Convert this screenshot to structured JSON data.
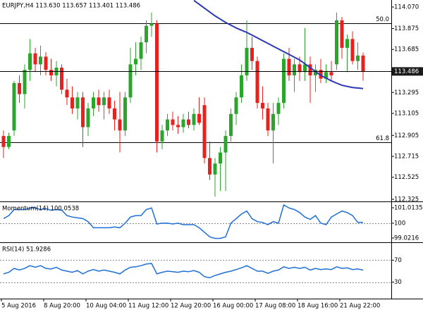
{
  "chart_data": [
    {
      "type": "candlestick",
      "title": "EURJPY,H4  113.630 113.657 113.401 113.486",
      "categories": [
        "5 Aug 2016",
        null,
        null,
        null,
        null,
        null,
        null,
        null,
        "8 Aug 20:00",
        null,
        null,
        null,
        null,
        null,
        null,
        null,
        "10 Aug 04:00",
        null,
        null,
        null,
        null,
        null,
        null,
        null,
        "11 Aug 12:00",
        null,
        null,
        null,
        null,
        null,
        null,
        null,
        "12 Aug 20:00",
        null,
        null,
        null,
        null,
        null,
        null,
        null,
        "16 Aug 00:00",
        null,
        null,
        null,
        null,
        null,
        null,
        null,
        "17 Aug 08:00",
        null,
        null,
        null,
        null,
        null,
        null,
        null,
        "18 Aug 16:00",
        null,
        null,
        null,
        null,
        null,
        null,
        null,
        "21 Aug 22:00",
        null,
        null,
        null,
        null
      ],
      "open": [
        112.9,
        112.8,
        112.95,
        113.38,
        113.28,
        113.5,
        113.65,
        113.55,
        113.62,
        113.5,
        113.45,
        113.52,
        113.32,
        113.25,
        113.15,
        113.25,
        112.98,
        113.15,
        113.25,
        113.18,
        113.25,
        113.15,
        113.05,
        112.95,
        113.25,
        113.55,
        113.6,
        113.75,
        113.9,
        113.92,
        112.85,
        112.95,
        113.05,
        113.0,
        112.98,
        113.05,
        113.0,
        113.1,
        113.18,
        112.7,
        112.55,
        112.65,
        112.75,
        112.9,
        113.1,
        113.25,
        113.45,
        113.7,
        113.58,
        113.2,
        113.15,
        112.95,
        113.1,
        113.2,
        113.6,
        113.45,
        113.55,
        113.48,
        113.55,
        113.45,
        113.5,
        113.42,
        113.48,
        113.55,
        113.95,
        113.7,
        113.78,
        113.58,
        113.63
      ],
      "high": [
        112.95,
        112.93,
        113.4,
        113.45,
        113.55,
        113.78,
        113.7,
        113.72,
        113.66,
        113.6,
        113.58,
        113.55,
        113.42,
        113.35,
        113.3,
        113.3,
        113.2,
        113.3,
        113.32,
        113.3,
        113.32,
        113.22,
        113.3,
        113.3,
        113.7,
        113.75,
        113.8,
        113.95,
        114.02,
        113.95,
        113.0,
        113.1,
        113.12,
        113.08,
        113.1,
        113.12,
        113.15,
        113.25,
        113.25,
        112.85,
        112.7,
        112.8,
        112.95,
        113.15,
        113.3,
        113.55,
        113.95,
        113.8,
        113.62,
        113.35,
        113.2,
        113.2,
        113.25,
        113.65,
        113.7,
        113.6,
        113.62,
        113.88,
        113.62,
        113.55,
        113.6,
        113.55,
        113.58,
        114.02,
        113.98,
        113.82,
        113.85,
        113.75,
        113.657
      ],
      "low": [
        112.7,
        112.78,
        112.9,
        113.2,
        113.15,
        113.4,
        113.48,
        113.45,
        113.45,
        113.4,
        113.35,
        113.28,
        113.18,
        113.1,
        113.05,
        112.8,
        112.9,
        113.08,
        113.12,
        113.05,
        113.1,
        112.95,
        112.75,
        112.9,
        113.2,
        113.45,
        113.5,
        113.65,
        113.8,
        112.75,
        112.78,
        112.9,
        112.95,
        112.92,
        112.93,
        112.97,
        112.95,
        113.0,
        112.65,
        112.5,
        112.35,
        112.4,
        112.4,
        112.85,
        113.0,
        113.2,
        113.4,
        113.5,
        113.15,
        113.05,
        112.9,
        112.65,
        113.0,
        113.15,
        113.4,
        113.3,
        113.4,
        113.4,
        113.2,
        113.3,
        113.38,
        113.38,
        113.4,
        113.5,
        113.6,
        113.48,
        113.55,
        113.5,
        113.401
      ],
      "close": [
        112.8,
        112.9,
        113.38,
        113.28,
        113.5,
        113.65,
        113.55,
        113.62,
        113.5,
        113.45,
        113.52,
        113.32,
        113.25,
        113.15,
        113.25,
        112.98,
        113.15,
        113.25,
        113.18,
        113.25,
        113.15,
        113.05,
        112.95,
        113.25,
        113.55,
        113.6,
        113.75,
        113.9,
        113.92,
        112.85,
        112.95,
        113.05,
        113.0,
        112.98,
        113.05,
        113.0,
        113.1,
        113.02,
        112.7,
        112.55,
        112.65,
        112.75,
        112.9,
        113.1,
        113.25,
        113.45,
        113.7,
        113.58,
        113.2,
        113.15,
        112.95,
        113.1,
        113.2,
        113.6,
        113.45,
        113.55,
        113.48,
        113.55,
        113.45,
        113.5,
        113.42,
        113.48,
        113.45,
        113.95,
        113.7,
        113.78,
        113.58,
        113.63,
        113.486
      ],
      "up_color": "#2ca52c",
      "down_color": "#e8211e",
      "series": [
        {
          "name": "MA",
          "color": "#2b37b5",
          "values": [
            null,
            null,
            null,
            null,
            null,
            null,
            null,
            null,
            null,
            null,
            null,
            null,
            null,
            null,
            null,
            null,
            null,
            null,
            null,
            null,
            null,
            null,
            null,
            null,
            null,
            null,
            null,
            null,
            null,
            null,
            null,
            null,
            null,
            null,
            null,
            null,
            114.13,
            114.095,
            114.06,
            114.025,
            113.99,
            113.96,
            113.93,
            113.905,
            113.88,
            113.86,
            113.84,
            113.815,
            113.79,
            113.765,
            113.74,
            113.715,
            113.69,
            113.665,
            113.64,
            113.615,
            113.59,
            113.555,
            113.52,
            113.485,
            113.45,
            113.425,
            113.4,
            113.38,
            113.36,
            113.35,
            113.34,
            113.335,
            113.33
          ]
        }
      ],
      "levels": [
        {
          "value": 113.923,
          "label": "50.0"
        },
        {
          "value": 112.84,
          "label": "61.8"
        }
      ],
      "last_price": 113.486,
      "ylim": [
        112.306,
        114.134
      ],
      "yticks": [
        {
          "value": 114.07,
          "label": "114.070"
        },
        113.875,
        113.685,
        113.295,
        113.105,
        112.905,
        112.715,
        112.525,
        112.325
      ]
    },
    {
      "type": "line",
      "title": "Momentum(14) 100.0538",
      "series": [
        {
          "name": "Momentum(14)",
          "color": "#1f6fd6",
          "values": [
            100.3,
            100.5,
            100.9,
            100.9,
            100.9,
            101.0,
            101.0,
            100.9,
            100.95,
            100.85,
            100.9,
            100.85,
            100.5,
            100.4,
            100.35,
            100.3,
            100.1,
            99.7,
            99.7,
            99.7,
            99.7,
            99.75,
            99.7,
            100.0,
            100.4,
            100.5,
            100.5,
            100.9,
            101.0,
            99.95,
            100.0,
            100.0,
            99.95,
            100.0,
            99.9,
            99.9,
            99.9,
            99.7,
            99.4,
            99.1,
            99.0,
            99.0,
            99.1,
            100.0,
            100.3,
            100.6,
            100.8,
            100.3,
            100.1,
            100.05,
            99.9,
            100.1,
            100.0,
            101.2,
            101.0,
            100.9,
            100.7,
            100.4,
            100.25,
            100.5,
            100.0,
            99.9,
            100.4,
            100.6,
            100.8,
            100.7,
            100.5,
            100.05,
            100.0538
          ]
        }
      ],
      "levels": [
        100
      ],
      "ylim": [
        98.79,
        101.338
      ],
      "yticks": [
        101.0135,
        100,
        99.0216
      ]
    },
    {
      "type": "line",
      "title": "RSI(14) 51.9286",
      "series": [
        {
          "name": "RSI(14)",
          "color": "#1f6fd6",
          "values": [
            45,
            48,
            55,
            52,
            55,
            60,
            57,
            60,
            55,
            54,
            57,
            52,
            50,
            48,
            51,
            45,
            50,
            53,
            50,
            52,
            50,
            48,
            45,
            52,
            57,
            58,
            60,
            63,
            64,
            45,
            48,
            50,
            49,
            48,
            50,
            49,
            51,
            48,
            40,
            38,
            42,
            45,
            48,
            50,
            53,
            56,
            60,
            55,
            50,
            50,
            46,
            50,
            52,
            58,
            55,
            57,
            55,
            57,
            52,
            55,
            53,
            54,
            53,
            58,
            55,
            56,
            53,
            54,
            51.9286
          ]
        }
      ],
      "levels": [
        70,
        30
      ],
      "ylim": [
        0,
        100
      ],
      "yticks": [
        70,
        30
      ]
    }
  ]
}
